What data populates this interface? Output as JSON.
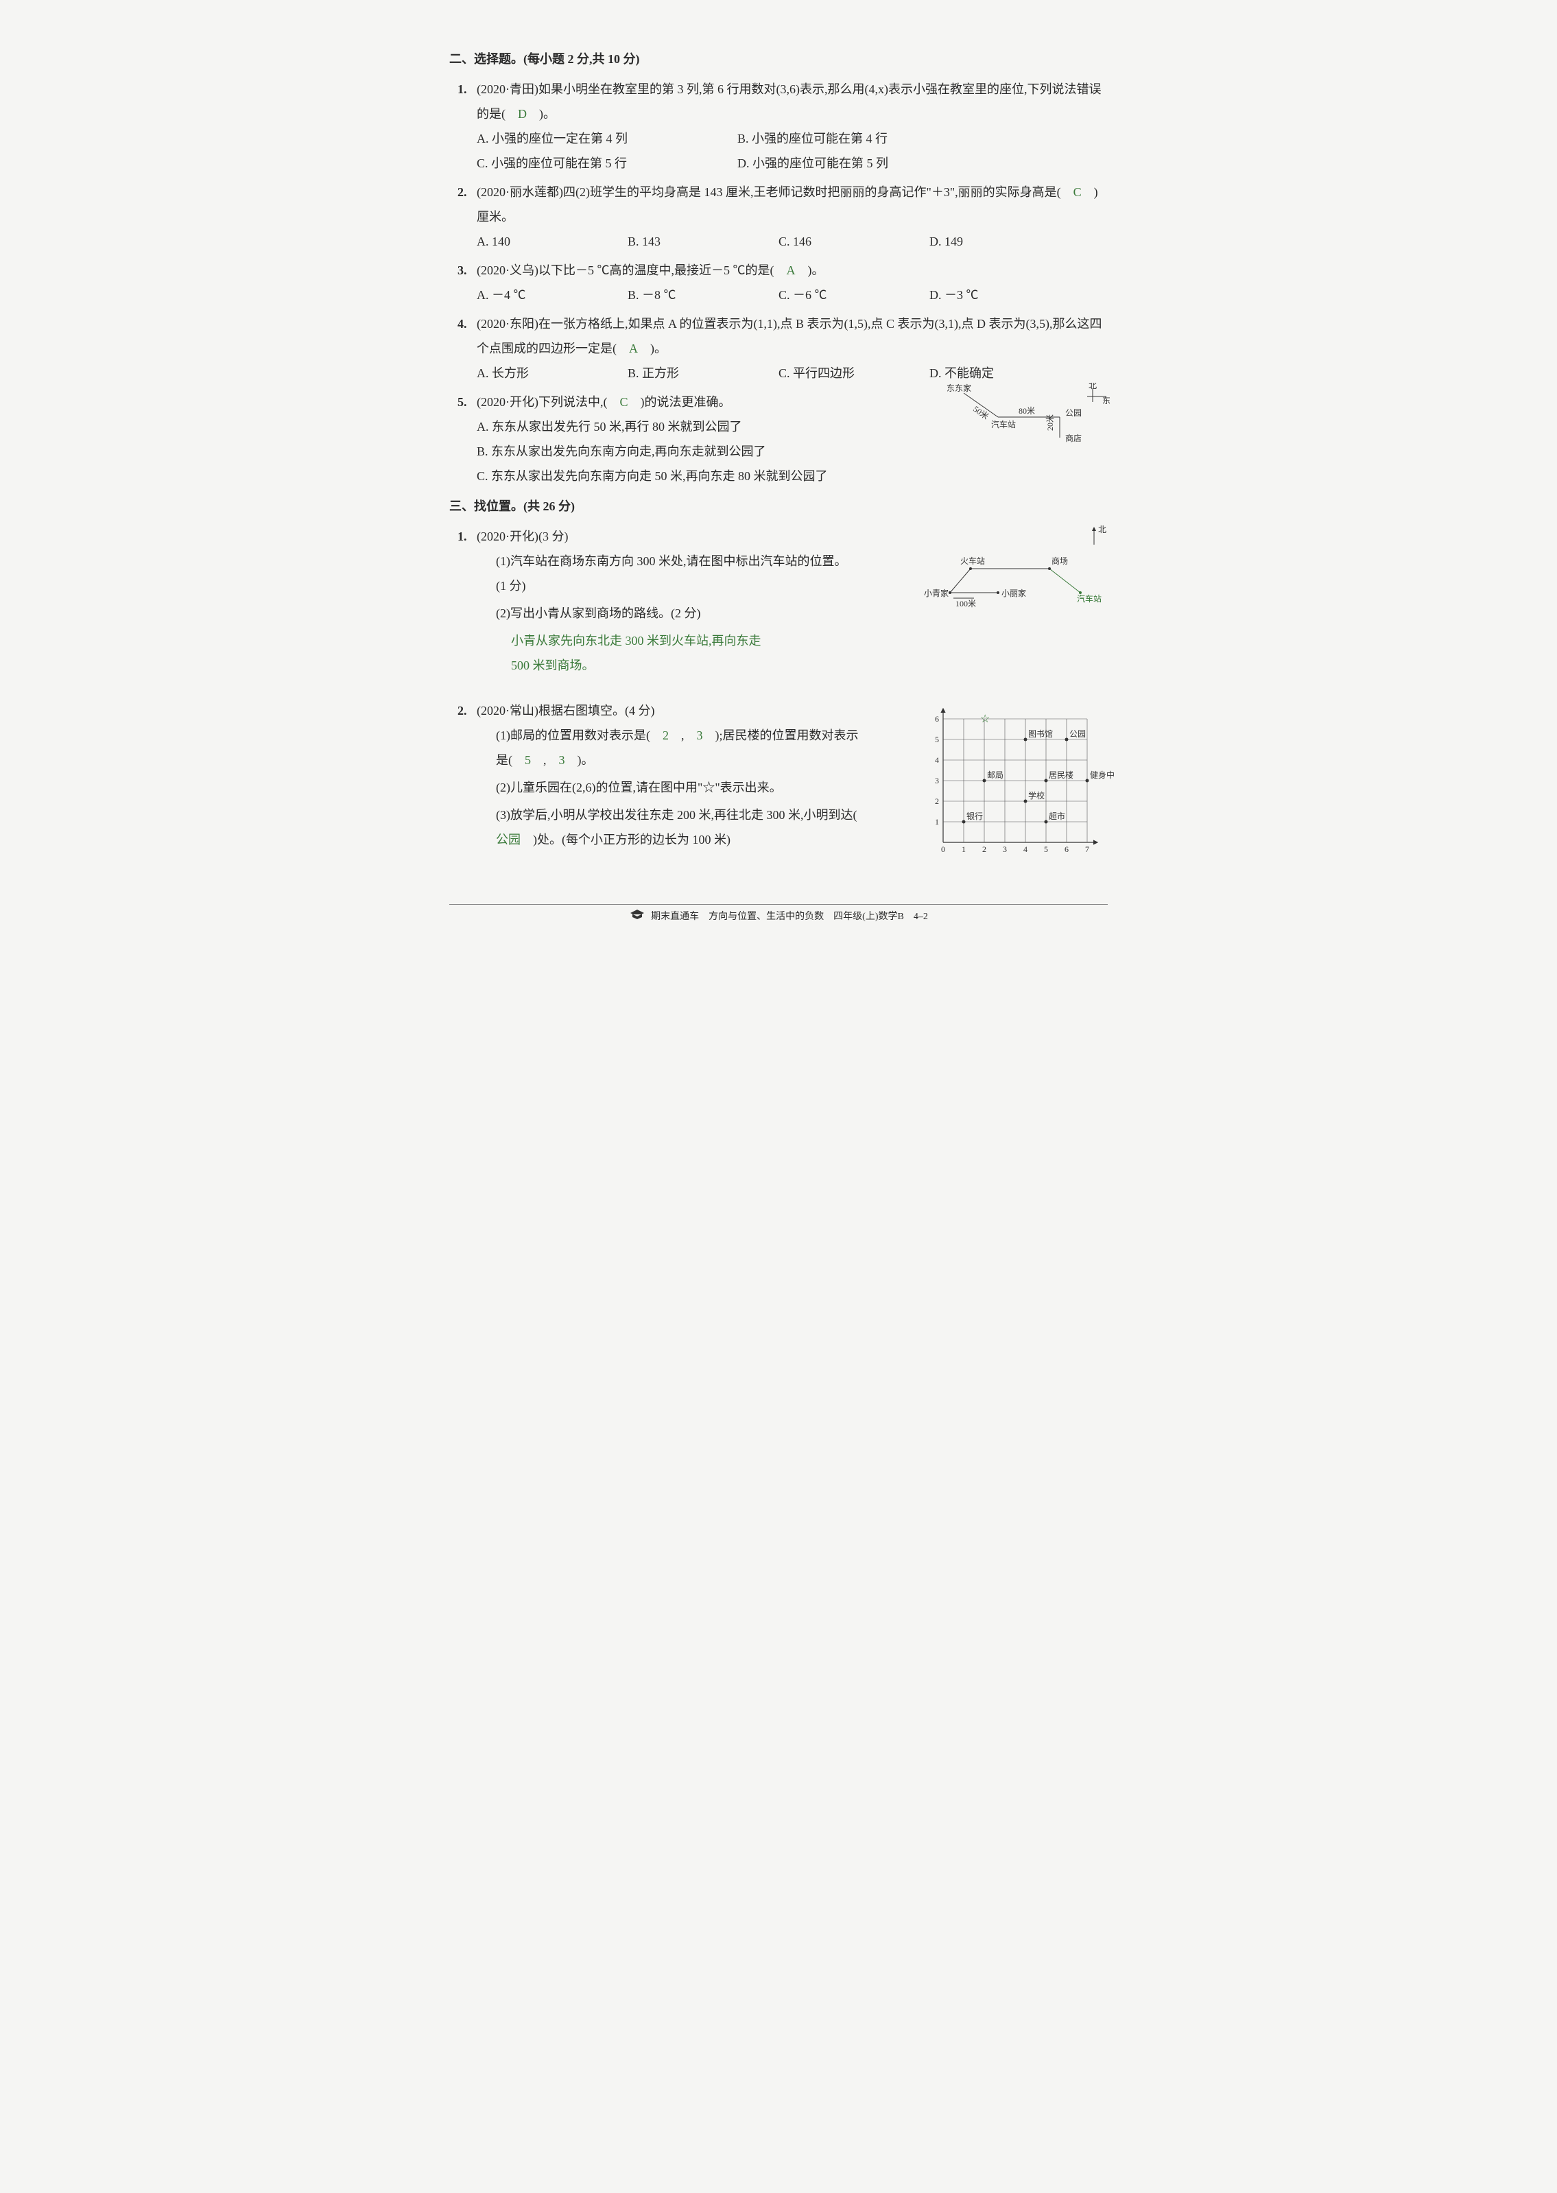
{
  "section2": {
    "header": "二、选择题。(每小题 2 分,共 10 分)",
    "q1": {
      "num": "1.",
      "text": "(2020·青田)如果小明坐在教室里的第 3 列,第 6 行用数对(3,6)表示,那么用(4,x)表示小强在教室里的座位,下列说法错误的是(　",
      "answer": "D",
      "text_end": "　)。",
      "optA": "A. 小强的座位一定在第 4 列",
      "optB": "B. 小强的座位可能在第 4 行",
      "optC": "C. 小强的座位可能在第 5 行",
      "optD": "D. 小强的座位可能在第 5 列"
    },
    "q2": {
      "num": "2.",
      "text": "(2020·丽水莲都)四(2)班学生的平均身高是 143 厘米,王老师记数时把丽丽的身高记作\"＋3\",丽丽的实际身高是(　",
      "answer": "C",
      "text_end": "　)厘米。",
      "optA": "A. 140",
      "optB": "B. 143",
      "optC": "C. 146",
      "optD": "D. 149"
    },
    "q3": {
      "num": "3.",
      "text": "(2020·义乌)以下比－5 ℃高的温度中,最接近－5 ℃的是(　",
      "answer": "A",
      "text_end": "　)。",
      "optA": "A. －4 ℃",
      "optB": "B. －8 ℃",
      "optC": "C. －6 ℃",
      "optD": "D. －3 ℃"
    },
    "q4": {
      "num": "4.",
      "text": "(2020·东阳)在一张方格纸上,如果点 A 的位置表示为(1,1),点 B 表示为(1,5),点 C 表示为(3,1),点 D 表示为(3,5),那么这四个点围成的四边形一定是(　",
      "answer": "A",
      "text_end": "　)。",
      "optA": "A. 长方形",
      "optB": "B. 正方形",
      "optC": "C. 平行四边形",
      "optD": "D. 不能确定"
    },
    "q5": {
      "num": "5.",
      "text": "(2020·开化)下列说法中,(　",
      "answer": "C",
      "text_end": "　)的说法更准确。",
      "optA": "A. 东东从家出发先行 50 米,再行 80 米就到公园了",
      "optB": "B. 东东从家出发先向东南方向走,再向东走就到公园了",
      "optC": "C. 东东从家出发先向东南方向走 50 米,再向东走 80 米就到公园了",
      "diagram": {
        "type": "map-sketch",
        "nodes": {
          "dongdong": "东东家",
          "busstop": "汽车站",
          "park": "公园",
          "shop": "商店",
          "north": "北",
          "east": "东"
        },
        "edges": {
          "d_bus": "50米",
          "bus_park": "80米",
          "park_shop": "20米"
        },
        "colors": {
          "line": "#333333"
        }
      }
    }
  },
  "section3": {
    "header": "三、找位置。(共 26 分)",
    "q1": {
      "num": "1.",
      "text": "(2020·开化)(3 分)",
      "sub1": "(1)汽车站在商场东南方向 300 米处,请在图中标出汽车站的位置。(1 分)",
      "sub2": "(2)写出小青从家到商场的路线。(2 分)",
      "sub2_ans1": "小青从家先向东北走 300 米到火车站,再向东走",
      "sub2_ans2": "500 米到商场。",
      "diagram": {
        "type": "map-sketch",
        "nodes": {
          "north": "北",
          "mall": "商场",
          "train": "火车站",
          "xiaoqing": "小青家",
          "xiaoli": "小丽家",
          "busstop": "汽车站",
          "scale": "100米"
        },
        "colors": {
          "line": "#333333",
          "answer": "#3a7a3a"
        }
      }
    },
    "q2": {
      "num": "2.",
      "text": "(2020·常山)根据右图填空。(4 分)",
      "sub1_a": "(1)邮局的位置用数对表示是(　",
      "sub1_ans1": "2",
      "sub1_b": "　,　",
      "sub1_ans2": "3",
      "sub1_c": "　);居民楼的位置用数对表示是(　",
      "sub1_ans3": "5",
      "sub1_d": "　,　",
      "sub1_ans4": "3",
      "sub1_e": "　)。",
      "sub2": "(2)儿童乐园在(2,6)的位置,请在图中用\"☆\"表示出来。",
      "sub3_a": "(3)放学后,小明从学校出发往东走 200 米,再往北走 300 米,小明到达(　",
      "sub3_ans": "公园",
      "sub3_b": "　)处。(每个小正方形的边长为 100 米)",
      "diagram": {
        "type": "grid",
        "xrange": [
          0,
          7
        ],
        "yrange": [
          0,
          6
        ],
        "grid_color": "#555555",
        "points": {
          "library": {
            "x": 4,
            "y": 5,
            "label": "图书馆"
          },
          "park": {
            "x": 6,
            "y": 5,
            "label": "公园"
          },
          "post": {
            "x": 2,
            "y": 3,
            "label": "邮局"
          },
          "residence": {
            "x": 5,
            "y": 3,
            "label": "居民楼"
          },
          "gym": {
            "x": 7,
            "y": 3,
            "label": "健身中心"
          },
          "school": {
            "x": 4,
            "y": 2,
            "label": "学校"
          },
          "bank": {
            "x": 1,
            "y": 1,
            "label": "银行"
          },
          "market": {
            "x": 5,
            "y": 1,
            "label": "超市"
          },
          "star": {
            "x": 2,
            "y": 6,
            "label": "☆",
            "is_answer": true
          }
        },
        "axis_labels": [
          "0",
          "1",
          "2",
          "3",
          "4",
          "5",
          "6",
          "7"
        ],
        "y_labels": [
          "1",
          "2",
          "3",
          "4",
          "5",
          "6"
        ]
      }
    }
  },
  "footer": {
    "text": "期末直通车　方向与位置、生活中的负数　四年级(上)数学B　4–2"
  }
}
